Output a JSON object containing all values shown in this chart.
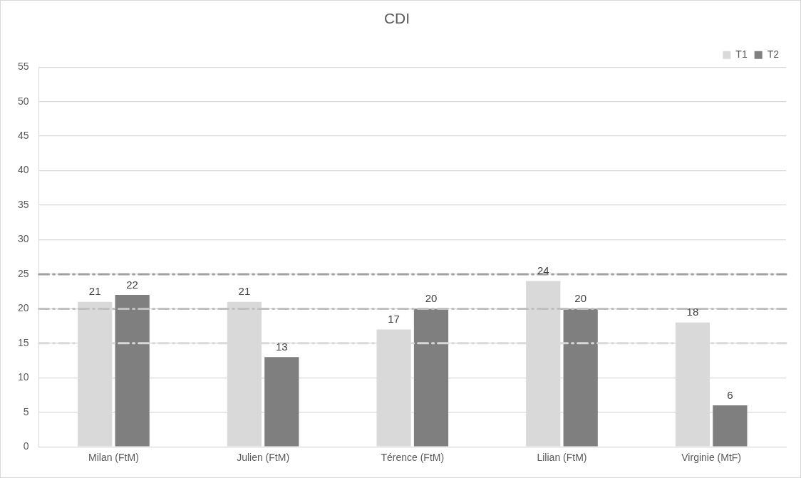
{
  "chart_data": {
    "type": "bar",
    "title": "CDI",
    "categories": [
      "Milan (FtM)",
      "Julien (FtM)",
      "Térence (FtM)",
      "Lilian (FtM)",
      "Virginie (MtF)"
    ],
    "series": [
      {
        "name": "T1",
        "color": "#d9d9d9",
        "values": [
          21,
          21,
          17,
          24,
          18
        ]
      },
      {
        "name": "T2",
        "color": "#7f7f7f",
        "values": [
          22,
          13,
          20,
          20,
          6
        ]
      }
    ],
    "ylim": [
      0,
      55
    ],
    "yticks": [
      0,
      5,
      10,
      15,
      20,
      25,
      30,
      35,
      40,
      45,
      50,
      55
    ],
    "grid": "y",
    "legend": "top right",
    "data_labels": true,
    "ref_lines": [
      {
        "axis": "y",
        "value": 25,
        "color": "#a0a0a0",
        "line_style": "dashed"
      },
      {
        "axis": "y",
        "value": 20,
        "color": "#c0c0c0",
        "line_style": "dashed"
      },
      {
        "axis": "y",
        "value": 15,
        "color": "#d9d9d9",
        "line_style": "dashed"
      }
    ]
  }
}
